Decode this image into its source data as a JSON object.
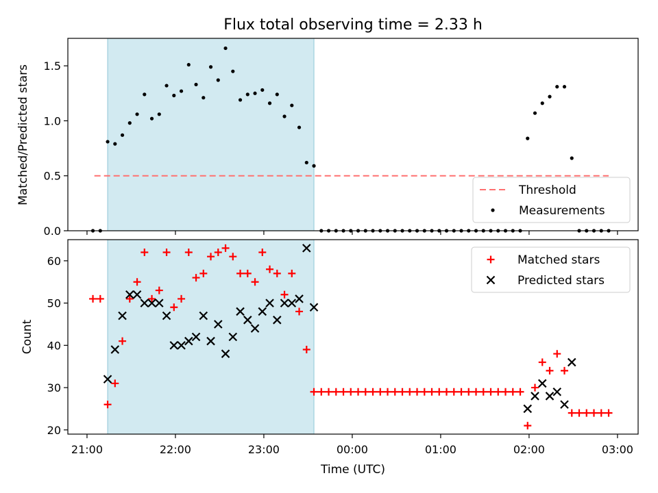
{
  "figure": {
    "title": "Flux total observing time = 2.33 h"
  },
  "colors": {
    "shade": "#add8e6",
    "threshold": "#ff7070",
    "measurement": "#000000",
    "matched": "#ff0000",
    "predicted": "#000000"
  },
  "chart_data": [
    {
      "type": "scatter",
      "panel": "top",
      "xlabel": "",
      "ylabel": "Matched/Predicted stars",
      "x_axis": "time",
      "xlim": [
        "20:47",
        "03:14"
      ],
      "ylim": [
        0,
        1.75
      ],
      "yticks": [
        0,
        0.5,
        1.0,
        1.5
      ],
      "ytick_labels": [
        "0.0",
        "0.5",
        "1.0",
        "1.5"
      ],
      "shaded_interval": [
        "21:14",
        "23:34"
      ],
      "threshold": {
        "name": "Threshold",
        "value": 0.5,
        "from": "21:05",
        "to": "02:54"
      },
      "legend": {
        "placement": "lower-right",
        "entries": [
          "Threshold",
          "Measurements"
        ]
      },
      "series": [
        {
          "name": "Measurements",
          "points": [
            [
              "21:04",
              0
            ],
            [
              "21:09",
              0
            ],
            [
              "21:14",
              0.81
            ],
            [
              "21:19",
              0.79
            ],
            [
              "21:24",
              0.87
            ],
            [
              "21:29",
              0.98
            ],
            [
              "21:34",
              1.06
            ],
            [
              "21:39",
              1.24
            ],
            [
              "21:44",
              1.02
            ],
            [
              "21:49",
              1.06
            ],
            [
              "21:54",
              1.32
            ],
            [
              "21:59",
              1.23
            ],
            [
              "22:04",
              1.27
            ],
            [
              "22:09",
              1.51
            ],
            [
              "22:14",
              1.33
            ],
            [
              "22:19",
              1.21
            ],
            [
              "22:24",
              1.49
            ],
            [
              "22:29",
              1.37
            ],
            [
              "22:34",
              1.66
            ],
            [
              "22:39",
              1.45
            ],
            [
              "22:44",
              1.19
            ],
            [
              "22:49",
              1.24
            ],
            [
              "22:54",
              1.25
            ],
            [
              "22:59",
              1.28
            ],
            [
              "23:04",
              1.16
            ],
            [
              "23:09",
              1.24
            ],
            [
              "23:14",
              1.04
            ],
            [
              "23:19",
              1.14
            ],
            [
              "23:24",
              0.94
            ],
            [
              "23:29",
              0.62
            ],
            [
              "23:34",
              0.59
            ],
            [
              "23:39",
              0
            ],
            [
              "23:44",
              0
            ],
            [
              "23:49",
              0
            ],
            [
              "23:54",
              0
            ],
            [
              "23:59",
              0
            ],
            [
              "00:04",
              0
            ],
            [
              "00:09",
              0
            ],
            [
              "00:14",
              0
            ],
            [
              "00:19",
              0
            ],
            [
              "00:24",
              0
            ],
            [
              "00:29",
              0
            ],
            [
              "00:34",
              0
            ],
            [
              "00:39",
              0
            ],
            [
              "00:44",
              0
            ],
            [
              "00:49",
              0
            ],
            [
              "00:54",
              0
            ],
            [
              "00:59",
              0
            ],
            [
              "01:04",
              0
            ],
            [
              "01:09",
              0
            ],
            [
              "01:14",
              0
            ],
            [
              "01:19",
              0
            ],
            [
              "01:24",
              0
            ],
            [
              "01:29",
              0
            ],
            [
              "01:34",
              0
            ],
            [
              "01:39",
              0
            ],
            [
              "01:44",
              0
            ],
            [
              "01:49",
              0
            ],
            [
              "01:54",
              0
            ],
            [
              "01:59",
              0.84
            ],
            [
              "02:04",
              1.07
            ],
            [
              "02:09",
              1.16
            ],
            [
              "02:14",
              1.22
            ],
            [
              "02:19",
              1.31
            ],
            [
              "02:24",
              1.31
            ],
            [
              "02:29",
              0.66
            ],
            [
              "02:34",
              0
            ],
            [
              "02:39",
              0
            ],
            [
              "02:44",
              0
            ],
            [
              "02:49",
              0
            ],
            [
              "02:54",
              0
            ]
          ]
        }
      ]
    },
    {
      "type": "scatter",
      "panel": "bottom",
      "xlabel": "Time (UTC)",
      "ylabel": "Count",
      "x_axis": "time",
      "xlim": [
        "20:47",
        "03:14"
      ],
      "ylim": [
        19,
        65
      ],
      "xticks": [
        "21:00",
        "22:00",
        "23:00",
        "00:00",
        "01:00",
        "02:00",
        "03:00"
      ],
      "yticks": [
        20,
        30,
        40,
        50,
        60
      ],
      "shaded_interval": [
        "21:14",
        "23:34"
      ],
      "legend": {
        "placement": "upper-right",
        "entries": [
          "Matched stars",
          "Predicted stars"
        ]
      },
      "series": [
        {
          "name": "Matched stars",
          "marker": "+",
          "points": [
            [
              "21:04",
              51
            ],
            [
              "21:09",
              51
            ],
            [
              "21:14",
              26
            ],
            [
              "21:19",
              31
            ],
            [
              "21:24",
              41
            ],
            [
              "21:29",
              51
            ],
            [
              "21:34",
              55
            ],
            [
              "21:39",
              62
            ],
            [
              "21:44",
              51
            ],
            [
              "21:49",
              53
            ],
            [
              "21:54",
              62
            ],
            [
              "21:59",
              49
            ],
            [
              "22:04",
              51
            ],
            [
              "22:09",
              62
            ],
            [
              "22:14",
              56
            ],
            [
              "22:19",
              57
            ],
            [
              "22:24",
              61
            ],
            [
              "22:29",
              62
            ],
            [
              "22:34",
              63
            ],
            [
              "22:39",
              61
            ],
            [
              "22:44",
              57
            ],
            [
              "22:49",
              57
            ],
            [
              "22:54",
              55
            ],
            [
              "22:59",
              62
            ],
            [
              "23:04",
              58
            ],
            [
              "23:09",
              57
            ],
            [
              "23:14",
              52
            ],
            [
              "23:19",
              57
            ],
            [
              "23:24",
              48
            ],
            [
              "23:29",
              39
            ],
            [
              "23:34",
              29
            ],
            [
              "23:39",
              29
            ],
            [
              "23:44",
              29
            ],
            [
              "23:49",
              29
            ],
            [
              "23:54",
              29
            ],
            [
              "23:59",
              29
            ],
            [
              "00:04",
              29
            ],
            [
              "00:09",
              29
            ],
            [
              "00:14",
              29
            ],
            [
              "00:19",
              29
            ],
            [
              "00:24",
              29
            ],
            [
              "00:29",
              29
            ],
            [
              "00:34",
              29
            ],
            [
              "00:39",
              29
            ],
            [
              "00:44",
              29
            ],
            [
              "00:49",
              29
            ],
            [
              "00:54",
              29
            ],
            [
              "00:59",
              29
            ],
            [
              "01:04",
              29
            ],
            [
              "01:09",
              29
            ],
            [
              "01:14",
              29
            ],
            [
              "01:19",
              29
            ],
            [
              "01:24",
              29
            ],
            [
              "01:29",
              29
            ],
            [
              "01:34",
              29
            ],
            [
              "01:39",
              29
            ],
            [
              "01:44",
              29
            ],
            [
              "01:49",
              29
            ],
            [
              "01:54",
              29
            ],
            [
              "01:59",
              21
            ],
            [
              "02:04",
              30
            ],
            [
              "02:09",
              36
            ],
            [
              "02:14",
              34
            ],
            [
              "02:19",
              38
            ],
            [
              "02:24",
              34
            ],
            [
              "02:29",
              24
            ],
            [
              "02:34",
              24
            ],
            [
              "02:39",
              24
            ],
            [
              "02:44",
              24
            ],
            [
              "02:49",
              24
            ],
            [
              "02:54",
              24
            ]
          ]
        },
        {
          "name": "Predicted stars",
          "marker": "x",
          "points": [
            [
              "21:14",
              32
            ],
            [
              "21:19",
              39
            ],
            [
              "21:24",
              47
            ],
            [
              "21:29",
              52
            ],
            [
              "21:34",
              52
            ],
            [
              "21:39",
              50
            ],
            [
              "21:44",
              50
            ],
            [
              "21:49",
              50
            ],
            [
              "21:54",
              47
            ],
            [
              "21:59",
              40
            ],
            [
              "22:04",
              40
            ],
            [
              "22:09",
              41
            ],
            [
              "22:14",
              42
            ],
            [
              "22:19",
              47
            ],
            [
              "22:24",
              41
            ],
            [
              "22:29",
              45
            ],
            [
              "22:34",
              38
            ],
            [
              "22:39",
              42
            ],
            [
              "22:44",
              48
            ],
            [
              "22:49",
              46
            ],
            [
              "22:54",
              44
            ],
            [
              "22:59",
              48
            ],
            [
              "23:04",
              50
            ],
            [
              "23:09",
              46
            ],
            [
              "23:14",
              50
            ],
            [
              "23:19",
              50
            ],
            [
              "23:24",
              51
            ],
            [
              "23:29",
              63
            ],
            [
              "23:34",
              49
            ],
            [
              "01:59",
              25
            ],
            [
              "02:04",
              28
            ],
            [
              "02:09",
              31
            ],
            [
              "02:14",
              28
            ],
            [
              "02:19",
              29
            ],
            [
              "02:24",
              26
            ],
            [
              "02:29",
              36
            ]
          ]
        }
      ]
    }
  ]
}
